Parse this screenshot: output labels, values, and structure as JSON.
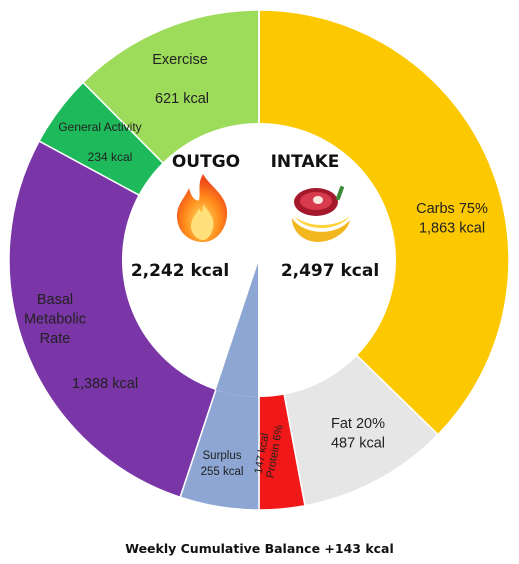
{
  "chart_data": {
    "type": "pie",
    "sides": [
      {
        "title": "OUTGO",
        "total_label": "2,242 kcal",
        "segments": [
          {
            "name": "Exercise",
            "value_label": "621 kcal",
            "value": 621,
            "color": "#9ddb5a"
          },
          {
            "name": "General Activity",
            "value_label": "234 kcal",
            "value": 234,
            "color": "#1eb95a"
          },
          {
            "name": "Basal Metabolic Rate",
            "name_lines": [
              "Basal",
              "Metabolic",
              "Rate"
            ],
            "value_label": "1,388 kcal",
            "value": 1388,
            "color": "#7a35a6"
          },
          {
            "name": "Surplus",
            "value_label": "255 kcal",
            "value": 255,
            "color": "#8ea6d4"
          }
        ]
      },
      {
        "title": "INTAKE",
        "total_label": "2,497 kcal",
        "segments": [
          {
            "name": "Carbs 75%",
            "value_label": "1,863 kcal",
            "value": 1863,
            "color": "#fcc800"
          },
          {
            "name": "Fat 20%",
            "value_label": "487 kcal",
            "value": 487,
            "color": "#e6e6e6"
          },
          {
            "name": "Protein 6%",
            "value_label": "147 kcal",
            "value": 147,
            "color": "#f01818"
          }
        ]
      }
    ],
    "caption": "Weekly Cumulative Balance +143 kcal"
  },
  "icons": {
    "outgo": "fire-icon",
    "intake": "food-icon"
  }
}
